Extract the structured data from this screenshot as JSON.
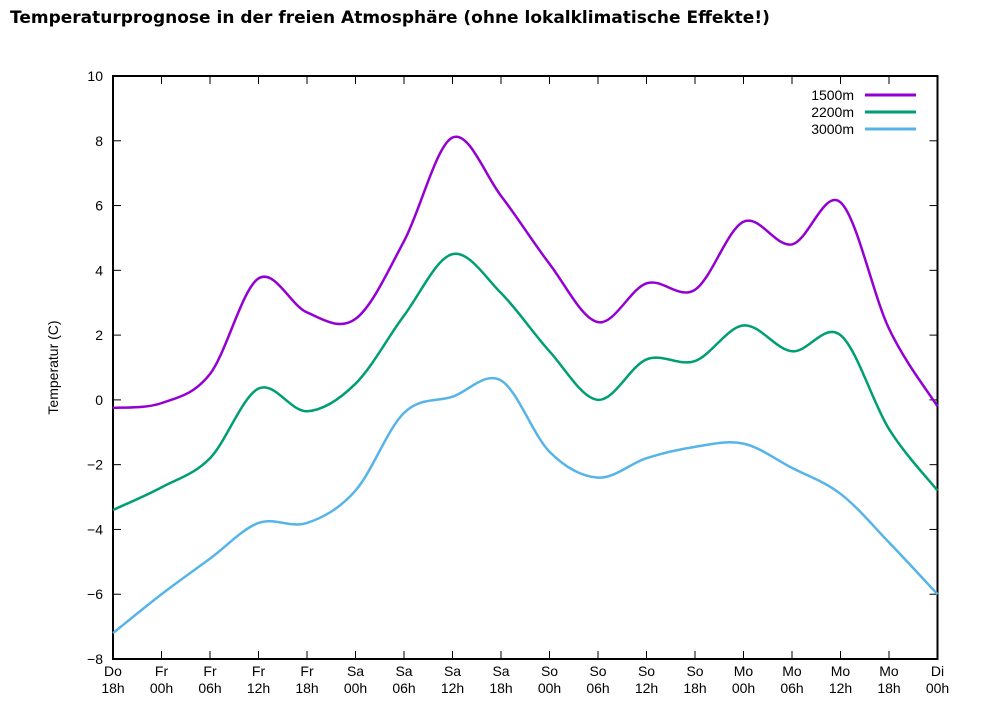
{
  "chart_data": {
    "type": "line",
    "title": "Temperaturprognose in der freien Atmosphäre (ohne lokalklimatische Effekte!)",
    "xlabel": "",
    "ylabel": "Temperatur (C)",
    "ylim": [
      -8,
      10
    ],
    "yticks": [
      -8,
      -6,
      -4,
      -2,
      0,
      2,
      4,
      6,
      8,
      10
    ],
    "legend": "top-right",
    "grid": false,
    "categories": [
      [
        "Do",
        "18h"
      ],
      [
        "Fr",
        "00h"
      ],
      [
        "Fr",
        "06h"
      ],
      [
        "Fr",
        "12h"
      ],
      [
        "Fr",
        "18h"
      ],
      [
        "Sa",
        "00h"
      ],
      [
        "Sa",
        "06h"
      ],
      [
        "Sa",
        "12h"
      ],
      [
        "Sa",
        "18h"
      ],
      [
        "So",
        "00h"
      ],
      [
        "So",
        "06h"
      ],
      [
        "So",
        "12h"
      ],
      [
        "So",
        "18h"
      ],
      [
        "Mo",
        "00h"
      ],
      [
        "Mo",
        "06h"
      ],
      [
        "Mo",
        "12h"
      ],
      [
        "Mo",
        "18h"
      ],
      [
        "Di",
        "00h"
      ]
    ],
    "series": [
      {
        "name": "1500m",
        "color": "#9400d3",
        "values": [
          -0.25,
          -0.1,
          0.8,
          3.75,
          2.7,
          2.5,
          4.9,
          8.1,
          6.3,
          4.2,
          2.4,
          3.6,
          3.4,
          5.5,
          4.8,
          6.1,
          2.2,
          -0.2
        ]
      },
      {
        "name": "2200m",
        "color": "#009e73",
        "values": [
          -3.4,
          -2.7,
          -1.8,
          0.35,
          -0.35,
          0.5,
          2.6,
          4.5,
          3.3,
          1.5,
          0.0,
          1.25,
          1.2,
          2.3,
          1.5,
          2.0,
          -0.9,
          -2.8
        ]
      },
      {
        "name": "3000m",
        "color": "#56b4e9",
        "values": [
          -7.2,
          -6.0,
          -4.9,
          -3.8,
          -3.8,
          -2.8,
          -0.4,
          0.1,
          0.6,
          -1.6,
          -2.4,
          -1.8,
          -1.45,
          -1.35,
          -2.1,
          -2.9,
          -4.4,
          -6.0
        ]
      }
    ]
  }
}
